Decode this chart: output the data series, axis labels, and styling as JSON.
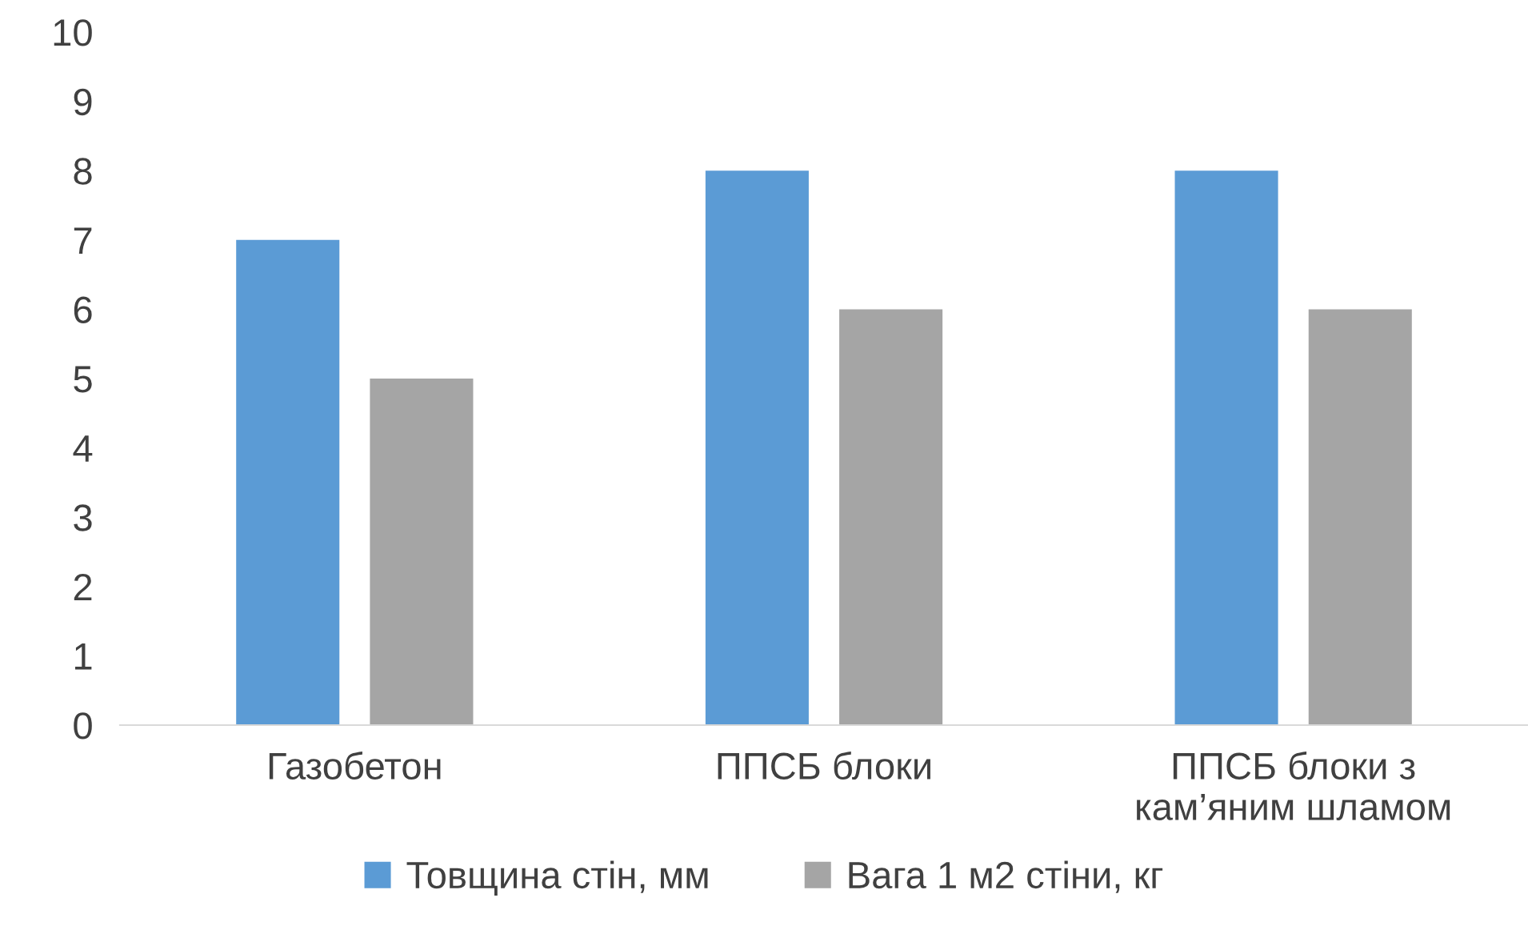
{
  "chart_data": {
    "type": "bar",
    "categories": [
      "Газобетон",
      "ППСБ блоки",
      "ППСБ блоки з\nкам’яним шламом"
    ],
    "series": [
      {
        "name": "Товщина стін, мм",
        "color": "#5b9bd5",
        "values": [
          7,
          8,
          8
        ]
      },
      {
        "name": "Вага 1 м2 стіни, кг",
        "color": "#a5a5a5",
        "values": [
          5,
          6,
          6
        ]
      }
    ],
    "ylim": [
      0,
      10
    ],
    "yticks": [
      0,
      1,
      2,
      3,
      4,
      5,
      6,
      7,
      8,
      9,
      10
    ],
    "grid": false,
    "legend": "bottom"
  }
}
